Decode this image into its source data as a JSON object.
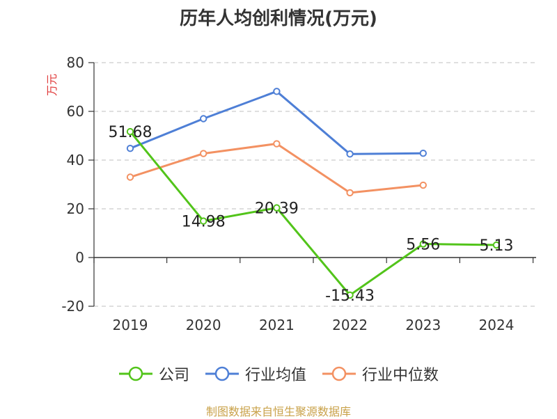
{
  "chart_data": {
    "type": "line",
    "title": "历年人均创利情况(万元)",
    "ylabel": "万元",
    "xlabel": "",
    "categories": [
      "2019",
      "2020",
      "2021",
      "2022",
      "2023",
      "2024"
    ],
    "ylim": [
      -20,
      80
    ],
    "yticks": [
      80,
      60,
      40,
      20,
      0,
      -20
    ],
    "grid": true,
    "legend_position": "bottom",
    "series": [
      {
        "name": "公司",
        "color": "#52c41a",
        "values": [
          51.68,
          14.98,
          20.39,
          -15.43,
          5.56,
          5.13
        ],
        "labels": [
          "51.68",
          "14.98",
          "20.39",
          "-15.43",
          "5.56",
          "5.13"
        ]
      },
      {
        "name": "行业均值",
        "color": "#4e7fd6",
        "values": [
          44.8,
          57.0,
          68.2,
          42.5,
          42.8,
          null
        ],
        "labels": null
      },
      {
        "name": "行业中位数",
        "color": "#f39162",
        "values": [
          33.0,
          42.7,
          46.7,
          26.6,
          29.7,
          null
        ],
        "labels": null
      }
    ]
  },
  "ylabel_color": "#e03b3b",
  "source": "制图数据来自恒生聚源数据库"
}
